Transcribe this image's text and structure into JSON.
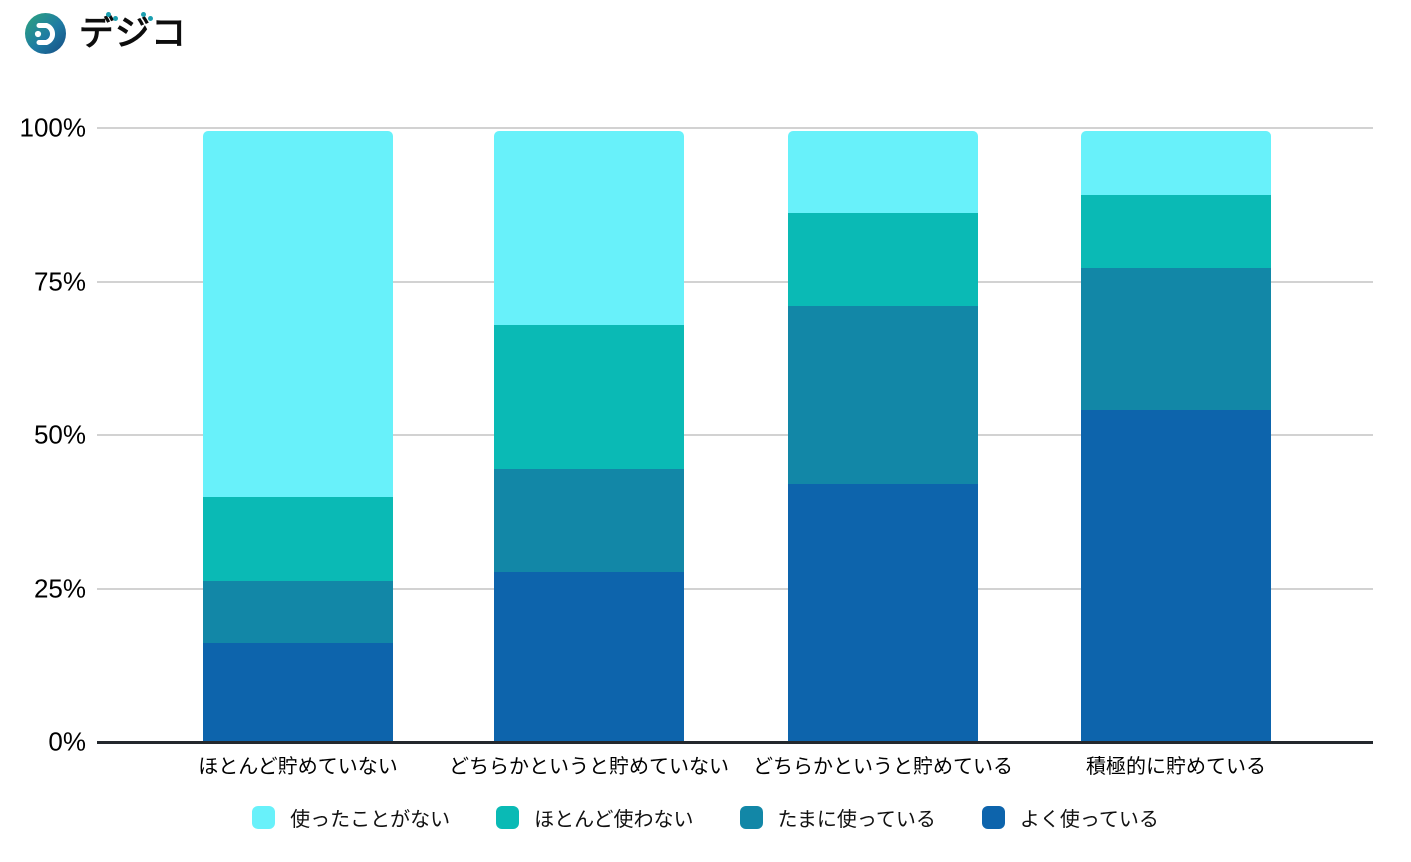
{
  "logo": {
    "text": "デジコ",
    "icon": "digico-mark",
    "accent_color": "#1b9fb0",
    "gradient": [
      "#2ea57d",
      "#1e7ba3",
      "#174b82"
    ]
  },
  "chart_data": {
    "type": "bar",
    "variant": "stacked-100-percent",
    "title": "",
    "categories": [
      "ほとんど貯めていない",
      "どちらかというと貯めていない",
      "どちらかというと貯めている",
      "積極的に貯めている"
    ],
    "series": [
      {
        "name": "使ったことがない",
        "color": "#68f1fa",
        "values": [
          59.9,
          31.8,
          13.4,
          10.4
        ]
      },
      {
        "name": "ほとんど使わない",
        "color": "#0abab5",
        "values": [
          13.8,
          23.6,
          15.3,
          12.0
        ]
      },
      {
        "name": "たまに使っている",
        "color": "#1287a7",
        "values": [
          10.1,
          16.7,
          29.1,
          23.2
        ]
      },
      {
        "name": "よく使っている",
        "color": "#0d64ac",
        "values": [
          16.2,
          27.9,
          42.2,
          54.4
        ]
      }
    ],
    "stack_order_bottom_to_top": [
      "よく使っている",
      "たまに使っている",
      "ほとんど使わない",
      "使ったことがない"
    ],
    "yticks": [
      "100%",
      "75%",
      "50%",
      "25%",
      "0%"
    ],
    "ylim": [
      0,
      100
    ],
    "grid": true,
    "gridline_color": "#d2d2d2",
    "axis_color": "#23282d",
    "legend_position": "bottom"
  }
}
